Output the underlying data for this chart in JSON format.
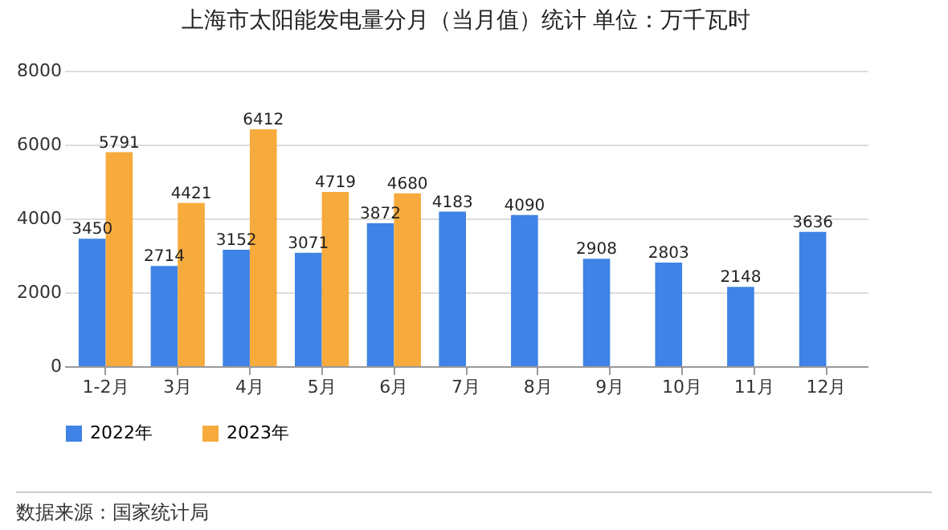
{
  "chart_data": {
    "type": "bar",
    "title": "上海市太阳能发电量分月（当月值）统计  单位：万千瓦时",
    "categories": [
      "1-2月",
      "3月",
      "4月",
      "5月",
      "6月",
      "7月",
      "8月",
      "9月",
      "10月",
      "11月",
      "12月"
    ],
    "series": [
      {
        "name": "2022年",
        "color": "#3e83e5",
        "values": [
          3450,
          2714,
          3152,
          3071,
          3872,
          4183,
          4090,
          2908,
          2803,
          2148,
          3636
        ]
      },
      {
        "name": "2023年",
        "color": "#f7ab3d",
        "values": [
          5791,
          4421,
          6412,
          4719,
          4680,
          null,
          null,
          null,
          null,
          null,
          null
        ]
      }
    ],
    "ylim": [
      0,
      8000
    ],
    "yticks": [
      0,
      2000,
      4000,
      6000,
      8000
    ],
    "grid": "y",
    "legend": "bottom",
    "data_labels": true,
    "annotations": [
      "数据来源：国家统计局"
    ]
  }
}
